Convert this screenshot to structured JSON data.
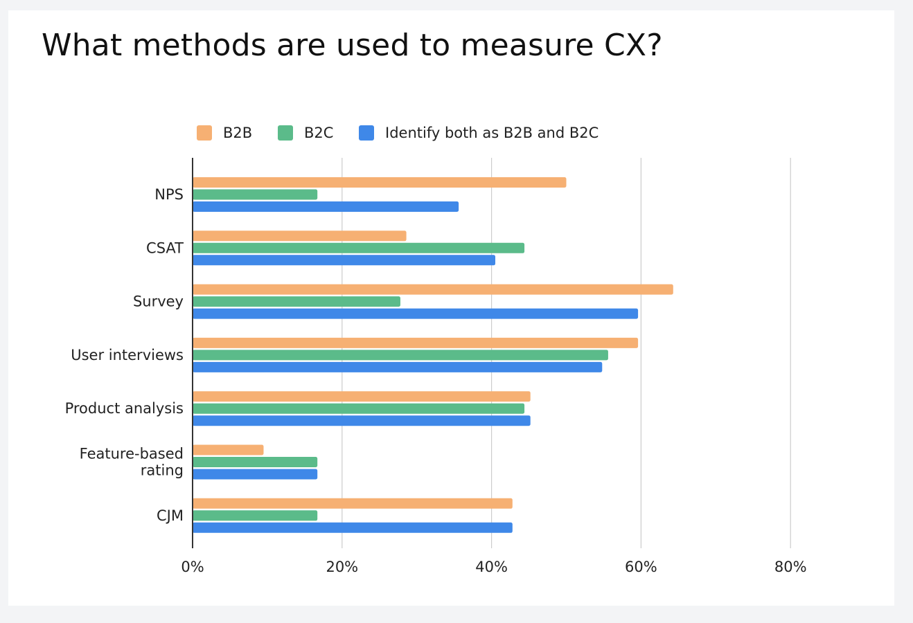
{
  "colors": {
    "b2b": "#f6b073",
    "b2c": "#5bbb8a",
    "both": "#3f88e8",
    "gridline": "#cccccc",
    "axis": "#333333"
  },
  "chart_data": {
    "type": "bar",
    "orientation": "horizontal",
    "title": "What methods are used to measure CX?",
    "categories": [
      "NPS",
      "CSAT",
      "Survey",
      "User interviews",
      "Product analysis",
      "Feature-based rating",
      "CJM"
    ],
    "category_label_lines": [
      [
        "NPS"
      ],
      [
        "CSAT"
      ],
      [
        "Survey"
      ],
      [
        "User interviews"
      ],
      [
        "Product analysis"
      ],
      [
        "Feature-based",
        "rating"
      ],
      [
        "CJM"
      ]
    ],
    "series": [
      {
        "name": "B2B",
        "color": "#f6b073",
        "values": [
          50,
          28.6,
          64.3,
          59.6,
          45.2,
          9.5,
          42.8
        ]
      },
      {
        "name": "B2C",
        "color": "#5bbb8a",
        "values": [
          16.7,
          44.4,
          27.8,
          55.6,
          44.4,
          16.7,
          16.7
        ]
      },
      {
        "name": "Identify both as B2B and B2C",
        "color": "#3f88e8",
        "values": [
          35.6,
          40.5,
          59.6,
          54.8,
          45.2,
          16.7,
          42.8
        ]
      }
    ],
    "xlim": [
      0,
      80
    ],
    "xticks": [
      0,
      20,
      40,
      60,
      80
    ],
    "xtick_labels": [
      "0%",
      "20%",
      "40%",
      "60%",
      "80%"
    ],
    "grid": true,
    "legend_position": "top-center"
  }
}
